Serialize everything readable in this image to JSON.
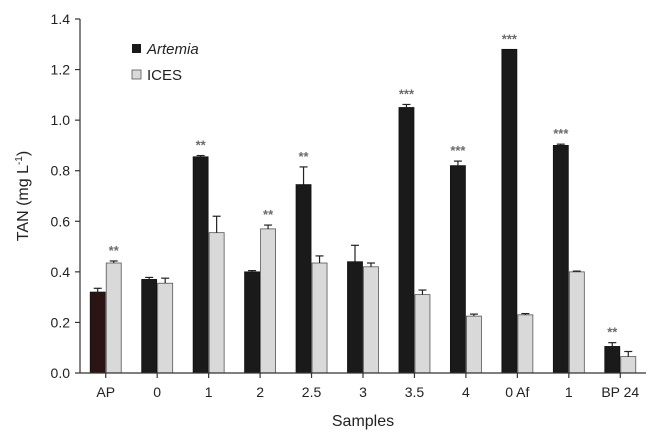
{
  "chart_data": {
    "type": "bar",
    "title": "",
    "xlabel": "Samples",
    "ylabel": "TAN (mg L",
    "ylabel_sup": "-1",
    "ylabel_close": ")",
    "ylim": [
      0,
      1.4
    ],
    "yticks": [
      "0.0",
      "0.2",
      "0.4",
      "0.6",
      "0.8",
      "1.0",
      "1.2",
      "1.4"
    ],
    "categories": [
      "AP",
      "0",
      "1",
      "2",
      "2.5",
      "3",
      "3.5",
      "4",
      "0 Af",
      "1",
      "BP 24"
    ],
    "legend_position": "top-left",
    "series": [
      {
        "name": "Artemia",
        "color": "#1a1a1a",
        "values": [
          0.32,
          0.37,
          0.855,
          0.4,
          0.745,
          0.44,
          1.05,
          0.82,
          1.28,
          0.9,
          0.105
        ],
        "errors": [
          0.015,
          0.008,
          0.005,
          0.005,
          0.07,
          0.065,
          0.012,
          0.018,
          0.0,
          0.005,
          0.015
        ],
        "significance": [
          "",
          "",
          "**",
          "",
          "**",
          "",
          "***",
          "***",
          "***",
          "***",
          "**"
        ]
      },
      {
        "name": "ICES",
        "color": "#d9d9d9",
        "values": [
          0.435,
          0.355,
          0.555,
          0.57,
          0.435,
          0.42,
          0.31,
          0.225,
          0.23,
          0.4,
          0.065
        ],
        "errors": [
          0.008,
          0.02,
          0.065,
          0.015,
          0.028,
          0.015,
          0.018,
          0.008,
          0.005,
          0.003,
          0.02
        ],
        "significance": [
          "**",
          "",
          "",
          "**",
          "",
          "",
          "",
          "",
          "",
          "",
          ""
        ]
      }
    ]
  }
}
